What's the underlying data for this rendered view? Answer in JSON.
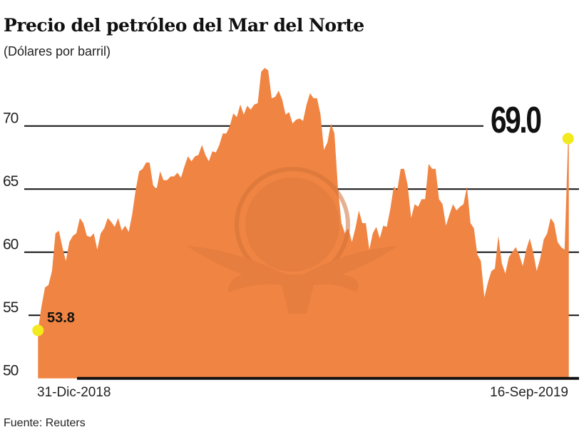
{
  "chart_data": {
    "type": "area",
    "title": "Precio del petróleo del Mar del Norte",
    "subtitle": "(Dólares por barril)",
    "source": "Fuente: Reuters",
    "x_start": "31-Dic-2018",
    "x_end": "16-Sep-2019",
    "x_tick_labels": [
      "31-Dic-2018",
      "16-Sep-2019"
    ],
    "y_ticks": [
      50,
      55,
      60,
      65,
      70
    ],
    "ylim": [
      50,
      75
    ],
    "grid": true,
    "annotations": [
      {
        "label": "53.8",
        "value": 53.8,
        "at": "start"
      },
      {
        "label": "69.0",
        "value": 69.0,
        "at": "end"
      }
    ],
    "values": [
      53.8,
      55.7,
      57.2,
      57.4,
      58.5,
      61.5,
      61.7,
      60.4,
      59.3,
      60.8,
      61.3,
      61.5,
      62.7,
      62.3,
      61.3,
      61.2,
      61.5,
      60.2,
      61.5,
      61.9,
      62.7,
      62.4,
      62.0,
      62.7,
      61.7,
      62.1,
      61.6,
      63.0,
      64.9,
      66.4,
      66.6,
      67.1,
      67.1,
      65.3,
      65.0,
      66.4,
      65.7,
      65.7,
      66.0,
      66.0,
      66.3,
      65.9,
      66.8,
      67.6,
      67.2,
      67.6,
      67.7,
      68.5,
      67.7,
      67.2,
      68.0,
      67.9,
      68.5,
      69.4,
      69.4,
      70.0,
      71.0,
      70.7,
      71.7,
      70.9,
      71.6,
      71.3,
      71.7,
      71.8,
      74.3,
      74.6,
      74.4,
      72.2,
      72.3,
      72.8,
      72.1,
      70.9,
      71.1,
      70.2,
      70.5,
      70.6,
      70.4,
      71.7,
      72.6,
      72.2,
      72.2,
      70.9,
      68.1,
      68.7,
      70.2,
      69.4,
      65.1,
      62.3,
      61.5,
      61.9,
      60.8,
      61.9,
      63.3,
      62.3,
      62.3,
      60.2,
      61.5,
      62.0,
      61.1,
      62.1,
      62.0,
      63.4,
      65.2,
      64.9,
      66.6,
      66.6,
      65.3,
      62.7,
      63.8,
      63.6,
      64.2,
      64.2,
      67.0,
      66.6,
      66.6,
      64.2,
      63.8,
      62.1,
      63.0,
      63.8,
      63.3,
      63.6,
      63.8,
      65.2,
      62.3,
      61.9,
      59.8,
      59.3,
      56.4,
      57.6,
      58.5,
      58.7,
      61.3,
      59.1,
      58.3,
      59.6,
      60.0,
      60.4,
      59.8,
      58.9,
      60.2,
      61.1,
      60.0,
      58.5,
      59.5,
      61.0,
      61.5,
      62.7,
      62.3,
      60.8,
      60.4,
      60.2,
      69.0
    ],
    "colors": {
      "area": "#F08442",
      "watermark": "#DE7A3F",
      "marker": "#F2EA1C",
      "grid": "#111111"
    }
  }
}
